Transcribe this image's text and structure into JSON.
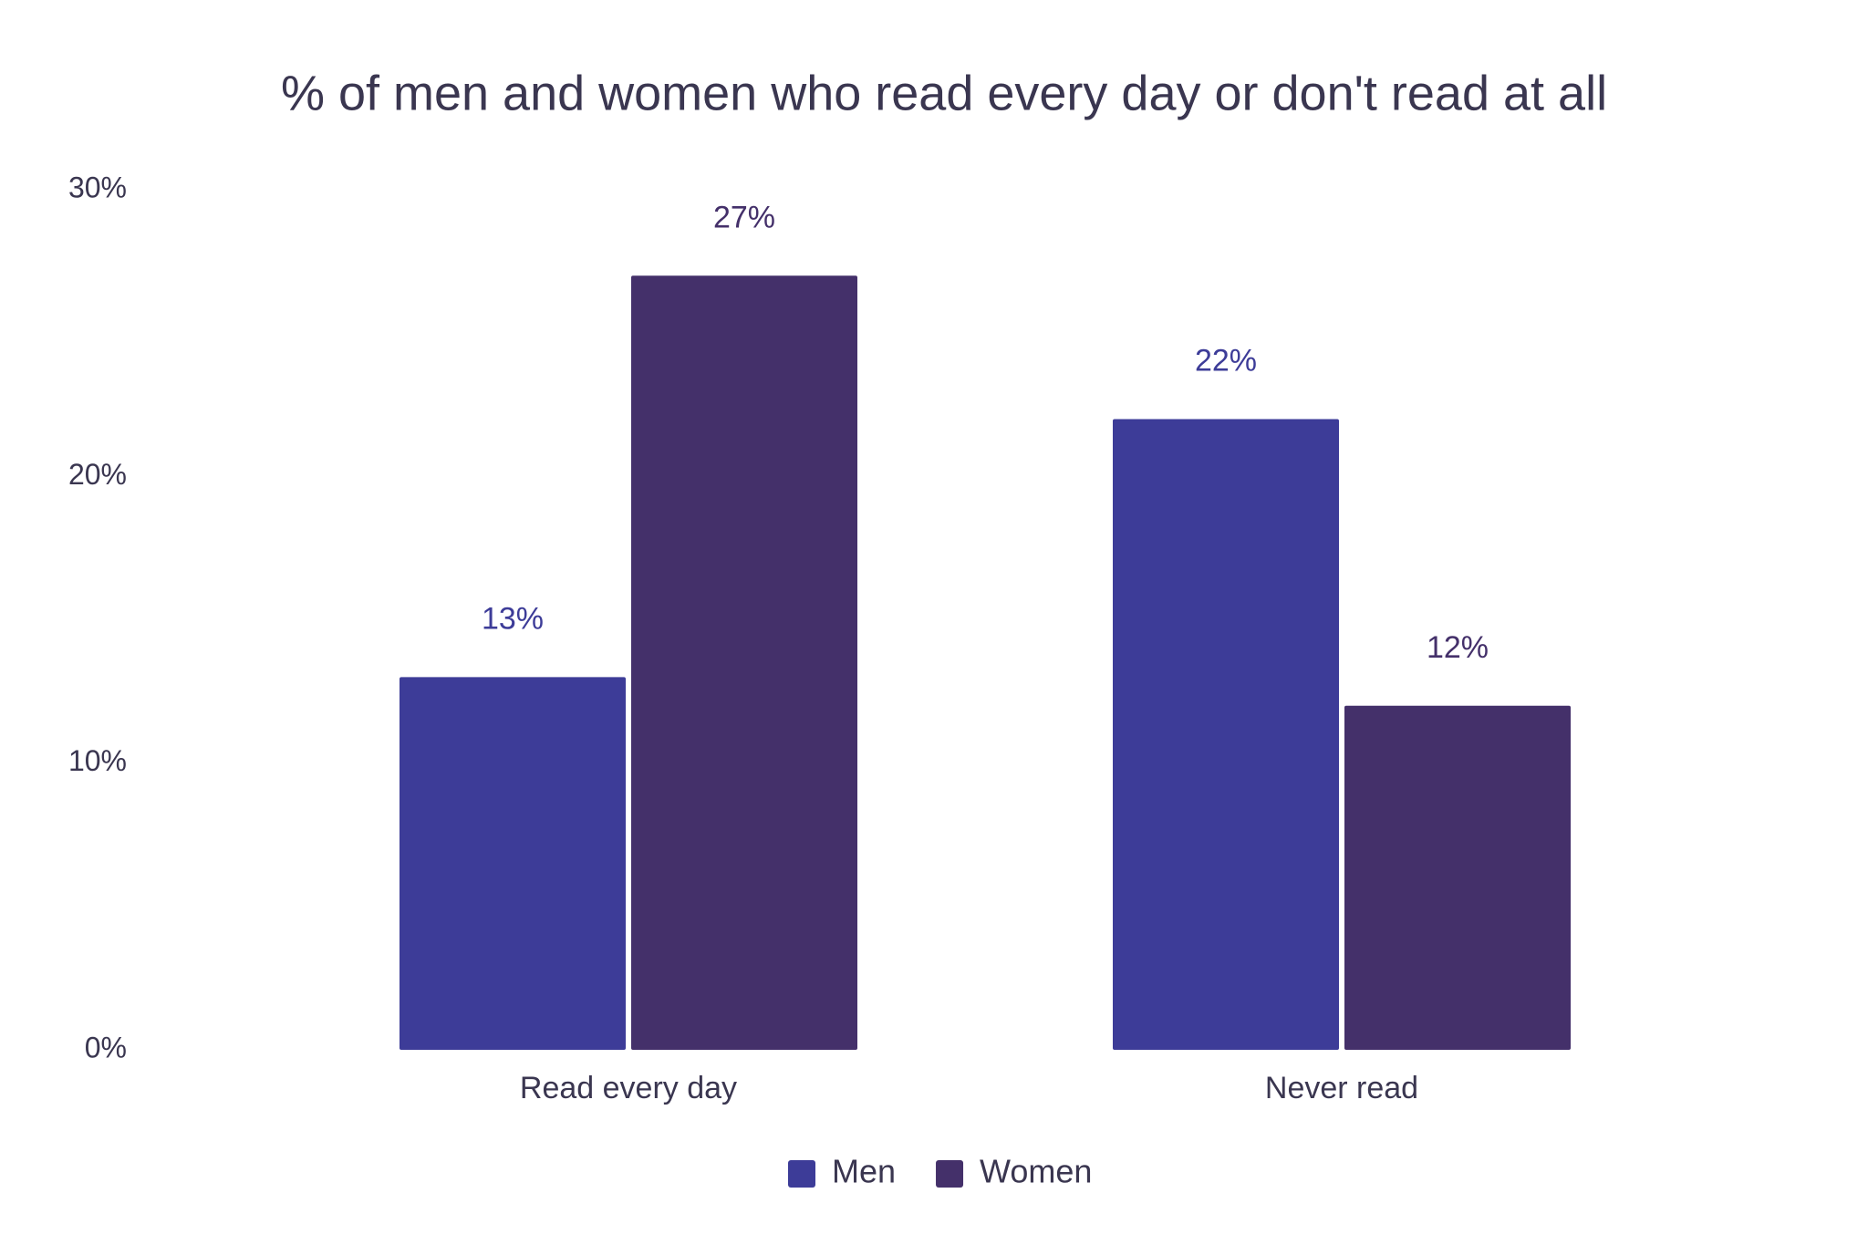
{
  "chart_data": {
    "type": "bar",
    "title": "% of men and women who read every day or don't read at all",
    "categories": [
      "Read every day",
      "Never read"
    ],
    "series": [
      {
        "name": "Men",
        "color": "#3d3c98",
        "values": [
          13,
          22
        ],
        "value_labels": [
          "13%",
          "22%"
        ]
      },
      {
        "name": "Women",
        "color": "#44306a",
        "values": [
          27,
          12
        ],
        "value_labels": [
          "27%",
          "12%"
        ]
      }
    ],
    "ylim": [
      0,
      30
    ],
    "yticks": [
      {
        "value": 0,
        "label": "0%"
      },
      {
        "value": 10,
        "label": "10%"
      },
      {
        "value": 20,
        "label": "20%"
      },
      {
        "value": 30,
        "label": "30%"
      }
    ],
    "grid": false,
    "legend": "bottom"
  }
}
